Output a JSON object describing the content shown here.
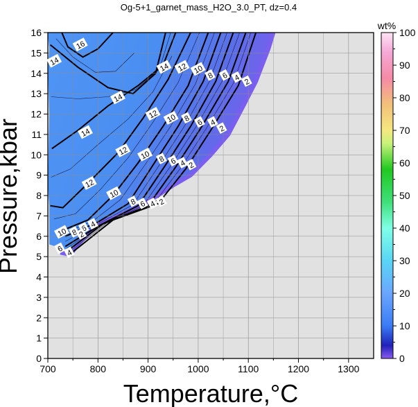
{
  "chart_data": {
    "type": "heatmap",
    "title": "Og-5+1_garnet_mass_H2O_3.0_PT, dz=0.4",
    "xlabel": "Temperature,°C",
    "ylabel": "Pressure,kbar",
    "xlim": [
      700,
      1350
    ],
    "ylim": [
      0,
      16
    ],
    "xticks": [
      700,
      800,
      900,
      1000,
      1100,
      1200,
      1300
    ],
    "yticks": [
      0,
      1,
      2,
      3,
      4,
      5,
      6,
      7,
      8,
      9,
      10,
      11,
      12,
      13,
      14,
      15,
      16
    ],
    "grid": true,
    "colorbar": {
      "label": "wt%",
      "range": [
        0,
        100
      ],
      "ticks": [
        0,
        10,
        20,
        30,
        40,
        50,
        60,
        70,
        80,
        90,
        100
      ]
    },
    "contour_labels": [
      {
        "text": "16",
        "T": 765,
        "P": 15.4
      },
      {
        "text": "14",
        "T": 713,
        "P": 14.6
      },
      {
        "text": "14",
        "T": 840,
        "P": 12.8
      },
      {
        "text": "14",
        "T": 775,
        "P": 11.1
      },
      {
        "text": "14",
        "T": 932,
        "P": 14.3
      },
      {
        "text": "12",
        "T": 968,
        "P": 14.3
      },
      {
        "text": "12",
        "T": 910,
        "P": 12.0
      },
      {
        "text": "12",
        "T": 850,
        "P": 10.2
      },
      {
        "text": "12",
        "T": 783,
        "P": 8.6
      },
      {
        "text": "10",
        "T": 1000,
        "P": 14.2
      },
      {
        "text": "10",
        "T": 946,
        "P": 11.8
      },
      {
        "text": "10",
        "T": 894,
        "P": 10.0
      },
      {
        "text": "10",
        "T": 832,
        "P": 8.1
      },
      {
        "text": "10",
        "T": 728,
        "P": 6.2
      },
      {
        "text": "8",
        "T": 1024,
        "P": 13.9
      },
      {
        "text": "8",
        "T": 977,
        "P": 11.8
      },
      {
        "text": "8",
        "T": 927,
        "P": 9.8
      },
      {
        "text": "8",
        "T": 870,
        "P": 7.7
      },
      {
        "text": "8",
        "T": 753,
        "P": 6.2
      },
      {
        "text": "6",
        "T": 1053,
        "P": 13.9
      },
      {
        "text": "6",
        "T": 1003,
        "P": 11.6
      },
      {
        "text": "6",
        "T": 950,
        "P": 9.7
      },
      {
        "text": "6",
        "T": 889,
        "P": 7.6
      },
      {
        "text": "6",
        "T": 772,
        "P": 6.4
      },
      {
        "text": "6",
        "T": 724,
        "P": 5.4
      },
      {
        "text": "4",
        "T": 1077,
        "P": 13.8
      },
      {
        "text": "4",
        "T": 1029,
        "P": 11.6
      },
      {
        "text": "4",
        "T": 969,
        "P": 9.6
      },
      {
        "text": "4",
        "T": 909,
        "P": 7.6
      },
      {
        "text": "4",
        "T": 790,
        "P": 6.6
      },
      {
        "text": "4",
        "T": 743,
        "P": 5.2
      },
      {
        "text": "2",
        "T": 1097,
        "P": 13.6
      },
      {
        "text": "2",
        "T": 1047,
        "P": 11.3
      },
      {
        "text": "2",
        "T": 986,
        "P": 9.5
      },
      {
        "text": "2",
        "T": 927,
        "P": 7.7
      },
      {
        "text": "2",
        "T": 767,
        "P": 6.1
      }
    ]
  }
}
